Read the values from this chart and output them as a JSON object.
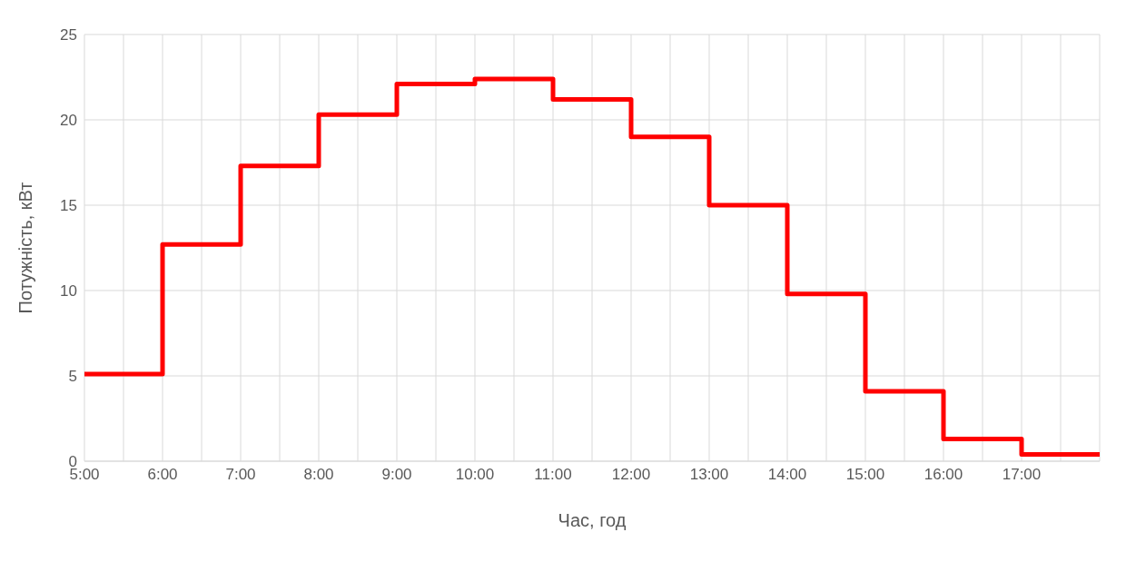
{
  "chart_data": {
    "type": "step",
    "xlabel": "Час, год",
    "ylabel": "Потужність, кВт",
    "x": [
      5,
      6,
      7,
      8,
      9,
      10,
      11,
      12,
      13,
      14,
      15,
      16,
      17,
      18
    ],
    "series": [
      {
        "color": "#ff0000",
        "values": [
          5.1,
          12.7,
          17.3,
          20.3,
          22.1,
          22.4,
          21.2,
          19.0,
          15.0,
          9.8,
          4.1,
          1.3,
          0.4,
          0.4
        ]
      }
    ],
    "xlim": [
      5,
      18
    ],
    "xticks": [
      {
        "value": 5,
        "label": "5:00"
      },
      {
        "value": 5.5,
        "label": null
      },
      {
        "value": 6,
        "label": "6:00"
      },
      {
        "value": 6.5,
        "label": null
      },
      {
        "value": 7,
        "label": "7:00"
      },
      {
        "value": 7.5,
        "label": null
      },
      {
        "value": 8,
        "label": "8:00"
      },
      {
        "value": 8.5,
        "label": null
      },
      {
        "value": 9,
        "label": "9:00"
      },
      {
        "value": 9.5,
        "label": null
      },
      {
        "value": 10,
        "label": "10:00"
      },
      {
        "value": 10.5,
        "label": null
      },
      {
        "value": 11,
        "label": "11:00"
      },
      {
        "value": 11.5,
        "label": null
      },
      {
        "value": 12,
        "label": "12:00"
      },
      {
        "value": 12.5,
        "label": null
      },
      {
        "value": 13,
        "label": "13:00"
      },
      {
        "value": 13.5,
        "label": null
      },
      {
        "value": 14,
        "label": "14:00"
      },
      {
        "value": 14.5,
        "label": null
      },
      {
        "value": 15,
        "label": "15:00"
      },
      {
        "value": 15.5,
        "label": null
      },
      {
        "value": 16,
        "label": "16:00"
      },
      {
        "value": 16.5,
        "label": null
      },
      {
        "value": 17,
        "label": "17:00"
      },
      {
        "value": 17.5,
        "label": null
      },
      {
        "value": 18,
        "label": null
      }
    ],
    "ylim": [
      0,
      25
    ],
    "yticks": [
      0,
      5,
      10,
      15,
      20,
      25
    ],
    "grid": true,
    "legend": false,
    "marker": "none",
    "line_style": "solid"
  }
}
